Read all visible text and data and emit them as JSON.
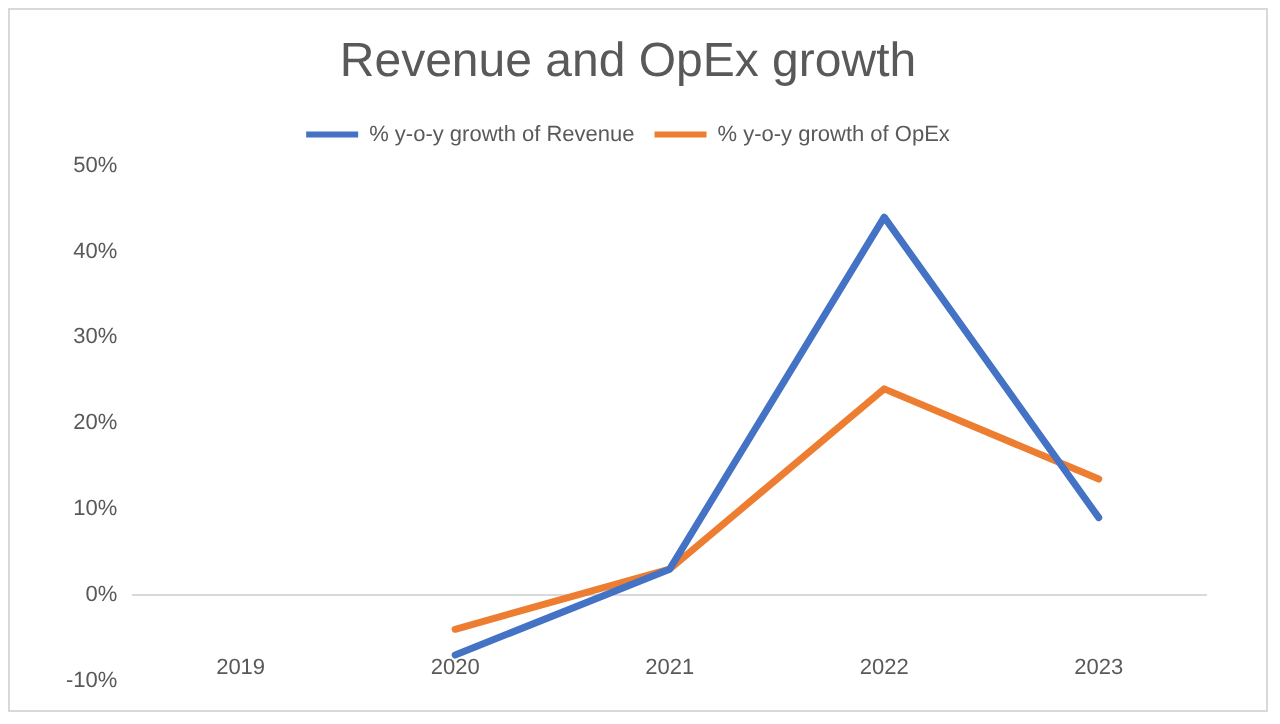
{
  "chart_data": {
    "type": "line",
    "title": "Revenue and OpEx growth",
    "categories": [
      "2019",
      "2020",
      "2021",
      "2022",
      "2023"
    ],
    "series": [
      {
        "name": "% y-o-y growth of Revenue",
        "color": "#4472c4",
        "values": [
          null,
          -7,
          3,
          44,
          9
        ]
      },
      {
        "name": "% y-o-y growth of OpEx",
        "color": "#ed7d31",
        "values": [
          null,
          -4,
          3,
          24,
          13.5
        ]
      }
    ],
    "ylim": [
      -10,
      50
    ],
    "yticks": [
      {
        "value": -10,
        "label": "-10%"
      },
      {
        "value": 0,
        "label": "0%"
      },
      {
        "value": 10,
        "label": "10%"
      },
      {
        "value": 20,
        "label": "20%"
      },
      {
        "value": 30,
        "label": "30%"
      },
      {
        "value": 40,
        "label": "40%"
      },
      {
        "value": 50,
        "label": "50%"
      }
    ],
    "legend": "top",
    "marker": "none",
    "line_style": "solid"
  }
}
